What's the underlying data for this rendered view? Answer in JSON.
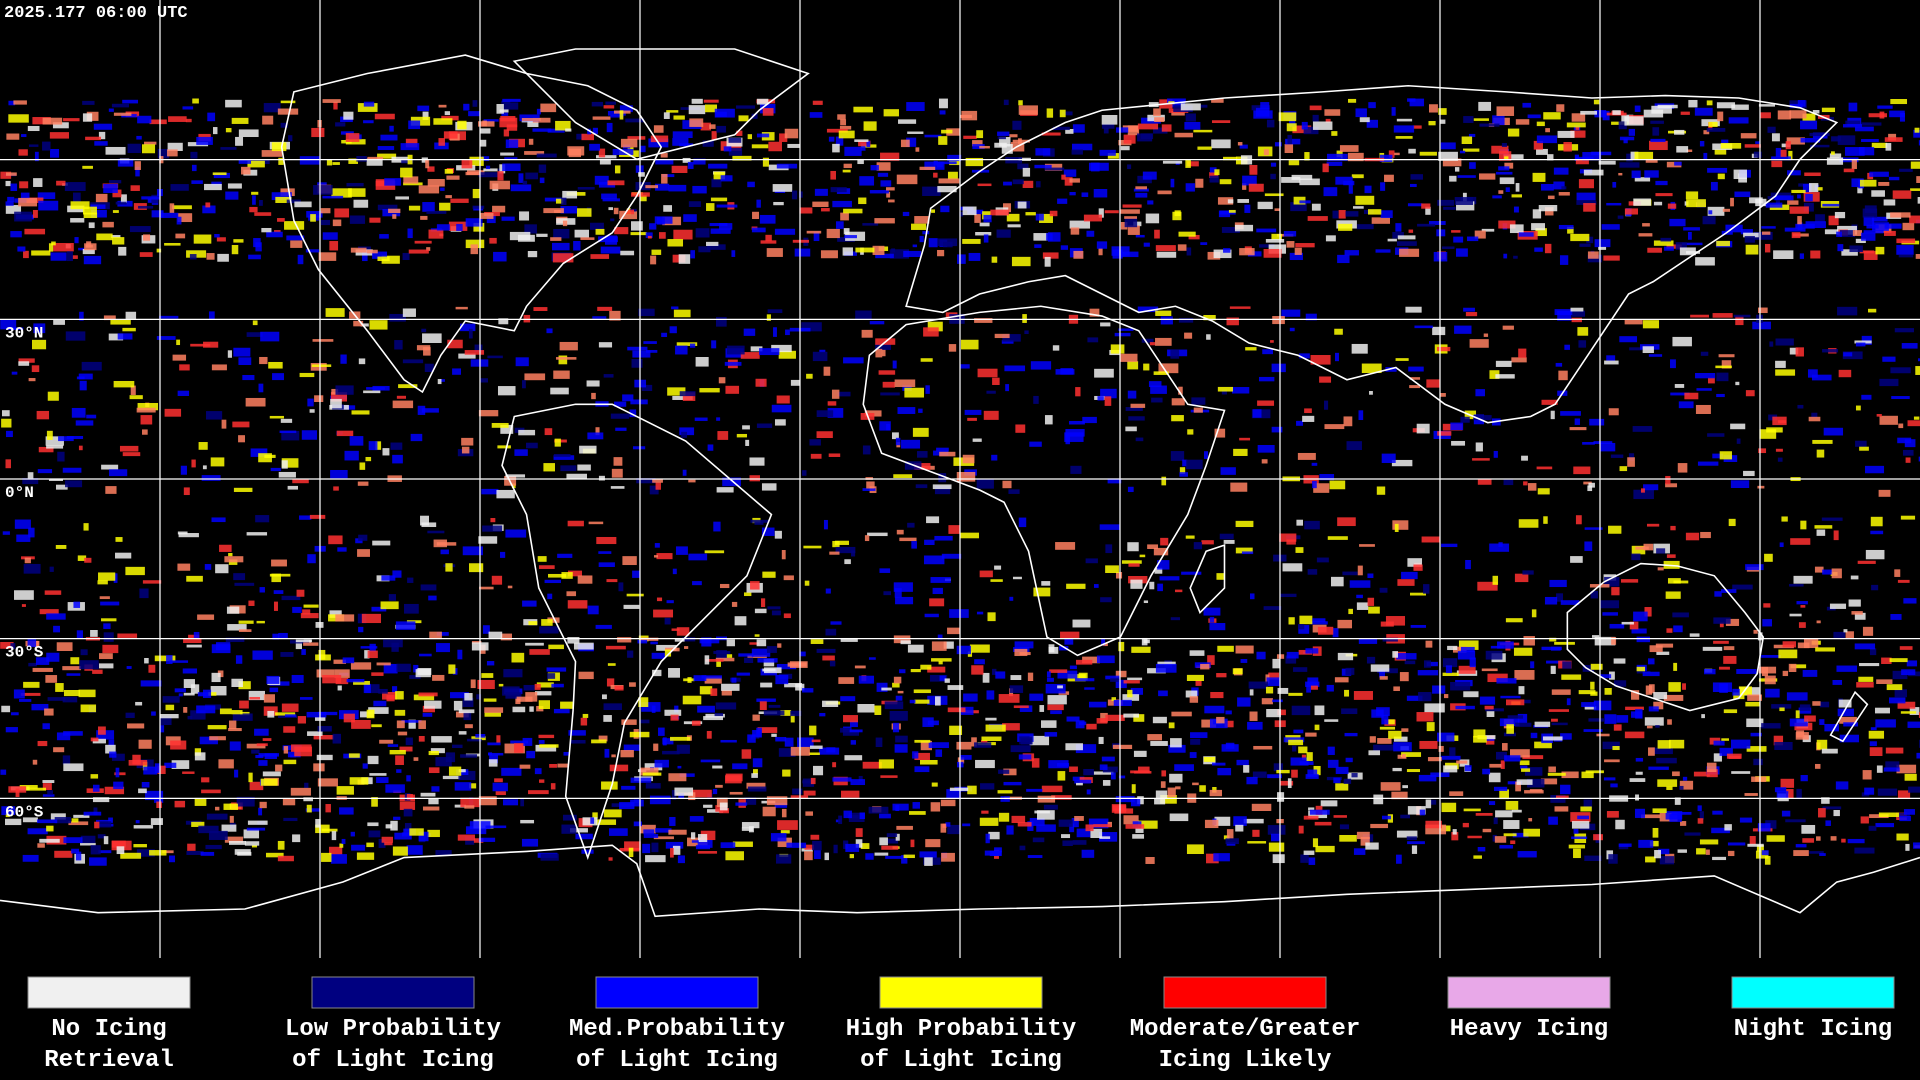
{
  "header": {
    "title": "2025.177 06:00 UTC"
  },
  "map": {
    "latitude_labels": [
      "30°N",
      "0°N",
      "30°S",
      "60°S"
    ]
  },
  "legend": [
    {
      "color": "#f0f0f0",
      "label": [
        "No Icing",
        "Retrieval"
      ]
    },
    {
      "color": "#000080",
      "label": [
        "Low Probability",
        "of Light Icing"
      ]
    },
    {
      "color": "#0000ff",
      "label": [
        "Med.Probability",
        "of Light Icing"
      ]
    },
    {
      "color": "#ffff00",
      "label": [
        "High Probability",
        "of Light Icing"
      ]
    },
    {
      "color": "#ff0000",
      "label": [
        "Moderate/Greater",
        "Icing Likely"
      ]
    },
    {
      "color": "#e8a8e8",
      "label": [
        "Heavy Icing"
      ]
    },
    {
      "color": "#00ffff",
      "label": [
        "Night Icing"
      ]
    }
  ]
}
